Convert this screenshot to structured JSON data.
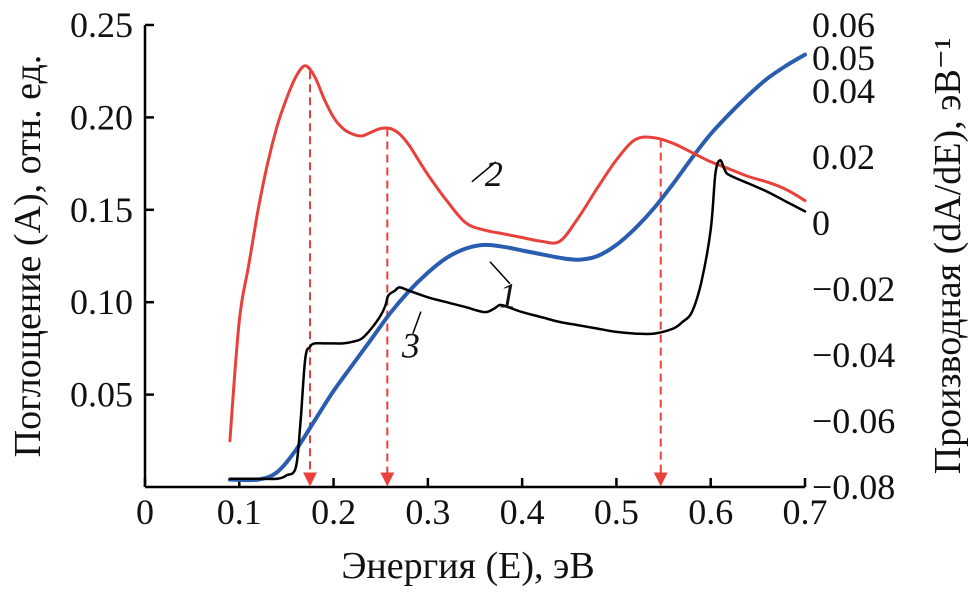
{
  "chart_data": {
    "type": "line",
    "title": "",
    "xlabel": "Энергия (E), эВ",
    "ylabel_left": "Поглощение (A), отн. ед.",
    "ylabel_right": "Производная (dA/dE), эВ⁻¹",
    "xlim": [
      0.0,
      0.7
    ],
    "ylim_left": [
      0.0,
      0.25
    ],
    "ylim_right": [
      -0.08,
      0.06
    ],
    "x_ticks": [
      "0",
      "0.1",
      "0.2",
      "0.3",
      "0.4",
      "0.5",
      "0.6",
      "0.7"
    ],
    "x_tick_values": [
      0.0,
      0.1,
      0.2,
      0.3,
      0.4,
      0.5,
      0.6,
      0.7
    ],
    "y_left_ticks": [
      "0.05",
      "0.10",
      "0.15",
      "0.20",
      "0.25"
    ],
    "y_left_tick_values": [
      0.05,
      0.1,
      0.15,
      0.2,
      0.25
    ],
    "y_right_ticks": [
      "−0.08",
      "−0.06",
      "−0.04",
      "−0.02",
      "0",
      "0.02",
      "0.04",
      "0.05",
      "0.06"
    ],
    "y_right_tick_values": [
      -0.08,
      -0.06,
      -0.04,
      -0.02,
      0.0,
      0.02,
      0.04,
      0.05,
      0.06
    ],
    "grid": false,
    "series": [
      {
        "name": "1",
        "color": "#2a5db0",
        "axis": "left",
        "x": [
          0.09,
          0.12,
          0.14,
          0.16,
          0.18,
          0.2,
          0.22,
          0.24,
          0.26,
          0.28,
          0.3,
          0.32,
          0.34,
          0.36,
          0.38,
          0.4,
          0.42,
          0.44,
          0.46,
          0.48,
          0.5,
          0.52,
          0.54,
          0.56,
          0.58,
          0.6,
          0.62,
          0.64,
          0.66,
          0.68,
          0.7
        ],
        "y": [
          0.004,
          0.004,
          0.008,
          0.02,
          0.036,
          0.052,
          0.066,
          0.08,
          0.094,
          0.106,
          0.116,
          0.124,
          0.129,
          0.131,
          0.13,
          0.128,
          0.126,
          0.124,
          0.123,
          0.125,
          0.131,
          0.14,
          0.151,
          0.164,
          0.178,
          0.191,
          0.202,
          0.212,
          0.221,
          0.228,
          0.234
        ]
      },
      {
        "name": "2",
        "color": "#e8413c",
        "axis": "left",
        "x": [
          0.09,
          0.1,
          0.11,
          0.12,
          0.13,
          0.14,
          0.15,
          0.16,
          0.17,
          0.18,
          0.19,
          0.2,
          0.21,
          0.22,
          0.23,
          0.24,
          0.25,
          0.26,
          0.27,
          0.28,
          0.29,
          0.3,
          0.32,
          0.34,
          0.36,
          0.38,
          0.4,
          0.42,
          0.44,
          0.46,
          0.48,
          0.5,
          0.52,
          0.54,
          0.56,
          0.58,
          0.6,
          0.62,
          0.64,
          0.66,
          0.68,
          0.7
        ],
        "y": [
          0.025,
          0.09,
          0.12,
          0.15,
          0.175,
          0.195,
          0.21,
          0.222,
          0.228,
          0.222,
          0.21,
          0.2,
          0.194,
          0.191,
          0.19,
          0.192,
          0.194,
          0.194,
          0.191,
          0.185,
          0.177,
          0.169,
          0.155,
          0.143,
          0.139,
          0.137,
          0.135,
          0.133,
          0.133,
          0.146,
          0.162,
          0.177,
          0.188,
          0.189,
          0.186,
          0.181,
          0.176,
          0.172,
          0.168,
          0.165,
          0.161,
          0.155
        ]
      }
    ],
    "series_right": [
      {
        "name": "3",
        "color": "#000000",
        "axis": "right",
        "x": [
          0.09,
          0.12,
          0.14,
          0.15,
          0.16,
          0.165,
          0.17,
          0.175,
          0.18,
          0.19,
          0.2,
          0.21,
          0.22,
          0.23,
          0.24,
          0.25,
          0.255,
          0.258,
          0.265,
          0.27,
          0.28,
          0.3,
          0.32,
          0.34,
          0.36,
          0.37,
          0.375,
          0.38,
          0.4,
          0.42,
          0.44,
          0.46,
          0.48,
          0.5,
          0.52,
          0.54,
          0.56,
          0.57,
          0.58,
          0.59,
          0.6,
          0.605,
          0.61,
          0.615,
          0.62,
          0.64,
          0.66,
          0.68,
          0.7
        ],
        "y": [
          -0.0775,
          -0.0775,
          -0.0775,
          -0.0765,
          -0.074,
          -0.06,
          -0.041,
          -0.0375,
          -0.0365,
          -0.0365,
          -0.0365,
          -0.0365,
          -0.036,
          -0.035,
          -0.032,
          -0.028,
          -0.025,
          -0.022,
          -0.0205,
          -0.0195,
          -0.0205,
          -0.0225,
          -0.024,
          -0.0255,
          -0.027,
          -0.026,
          -0.025,
          -0.025,
          -0.027,
          -0.0285,
          -0.03,
          -0.031,
          -0.032,
          -0.033,
          -0.0335,
          -0.0335,
          -0.032,
          -0.03,
          -0.027,
          -0.018,
          -0.002,
          0.015,
          0.019,
          0.016,
          0.0145,
          0.012,
          0.0095,
          0.0065,
          0.0035
        ]
      }
    ],
    "markers": {
      "x": [
        0.175,
        0.257,
        0.547
      ],
      "color": "#e8413c",
      "style": "dashed-arrow"
    },
    "curve_labels": [
      {
        "text": "1",
        "x": 0.375,
        "y": 0.104,
        "axis": "left"
      },
      {
        "text": "2",
        "x": 0.375,
        "y": 0.158,
        "axis": "left"
      },
      {
        "text": "3",
        "x": 0.29,
        "y": 0.075,
        "axis": "left"
      }
    ]
  }
}
